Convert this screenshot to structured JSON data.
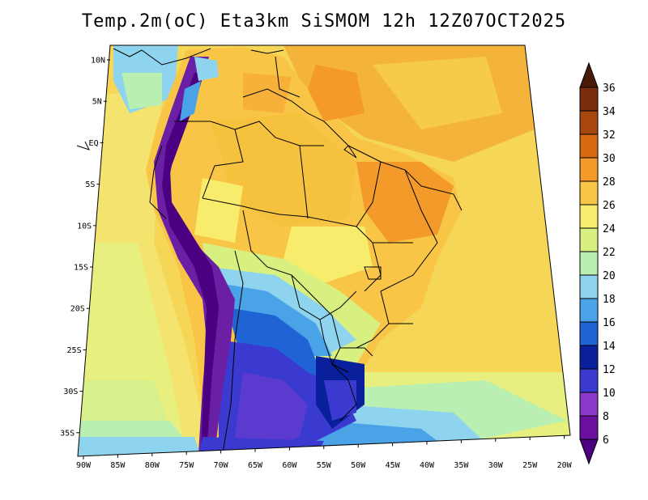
{
  "title": "Temp.2m(oC) Eta3km SiSMOM 12h 12Z07OCT2025",
  "map": {
    "lat_labels": [
      "10N",
      "5N",
      "EQ",
      "5S",
      "10S",
      "15S",
      "20S",
      "25S",
      "30S",
      "35S"
    ],
    "lon_labels": [
      "90W",
      "85W",
      "80W",
      "75W",
      "70W",
      "65W",
      "60W",
      "55W",
      "50W",
      "45W",
      "40W",
      "35W",
      "30W",
      "25W",
      "20W"
    ]
  },
  "colorbar": {
    "labels": [
      "36",
      "34",
      "32",
      "30",
      "28",
      "26",
      "24",
      "22",
      "20",
      "18",
      "16",
      "14",
      "12",
      "10",
      "8",
      "6"
    ],
    "colors": [
      "#4a1a08",
      "#7a2e0e",
      "#a8460f",
      "#d86a12",
      "#f39a2b",
      "#f9c546",
      "#f7ec6c",
      "#d8f080",
      "#b9efb0",
      "#8fd4ee",
      "#4aa3e6",
      "#1f63d4",
      "#0a1f9c",
      "#3b3ad0",
      "#8b39c9",
      "#6a0fa0",
      "#4a0080"
    ]
  },
  "colors": {
    "ocean_warm": "#f7d35a",
    "ocean_mid": "#f4e06a",
    "ocean_cool": "#d6ef8a",
    "land_hot": "#f39a2b",
    "land_warm": "#f9c546",
    "andes": "#6a1fa5",
    "south_cold": "#3a3ad0"
  }
}
